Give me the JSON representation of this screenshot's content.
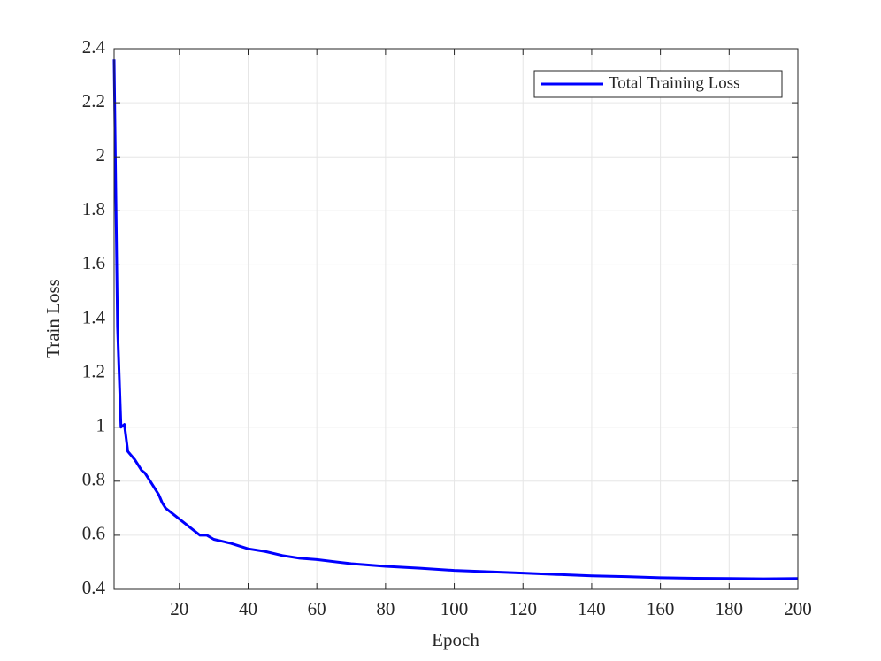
{
  "chart_data": {
    "type": "line",
    "x_label": "Epoch",
    "y_label": "Train Loss",
    "x": [
      1,
      2,
      3,
      4,
      5,
      7,
      9,
      10,
      12,
      14,
      15,
      16,
      18,
      20,
      22,
      24,
      26,
      28,
      30,
      35,
      40,
      45,
      50,
      55,
      60,
      70,
      80,
      90,
      100,
      110,
      120,
      130,
      140,
      150,
      160,
      170,
      180,
      190,
      200
    ],
    "series": [
      {
        "name": "Total Training Loss",
        "color": "#0000ff",
        "values": [
          2.36,
          1.37,
          1.0,
          1.01,
          0.91,
          0.88,
          0.84,
          0.83,
          0.79,
          0.75,
          0.72,
          0.7,
          0.68,
          0.66,
          0.64,
          0.62,
          0.6,
          0.6,
          0.585,
          0.57,
          0.55,
          0.54,
          0.525,
          0.515,
          0.51,
          0.495,
          0.485,
          0.478,
          0.47,
          0.465,
          0.46,
          0.455,
          0.45,
          0.447,
          0.443,
          0.441,
          0.44,
          0.439,
          0.44
        ]
      }
    ],
    "xlim": [
      1,
      200
    ],
    "xticks": [
      20,
      40,
      60,
      80,
      100,
      120,
      140,
      160,
      180,
      200
    ],
    "ylim": [
      0.4,
      2.4
    ],
    "yticks": [
      0.4,
      0.6,
      0.8,
      1,
      1.2,
      1.4,
      1.6,
      1.8,
      2,
      2.2,
      2.4
    ],
    "grid": true,
    "legend": "northeast"
  }
}
